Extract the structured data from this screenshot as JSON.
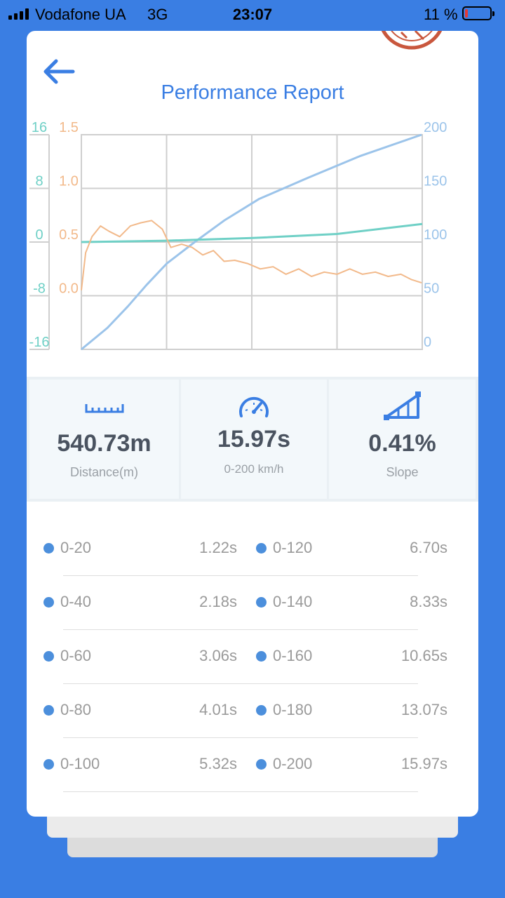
{
  "status_bar": {
    "carrier": "Vodafone UA",
    "network": "3G",
    "time": "23:07",
    "battery_text": "11 %",
    "battery_level": 0.11,
    "battery_color": "#e53935"
  },
  "header": {
    "title": "Performance Report",
    "back_icon": "arrow-left-icon",
    "stamp_icon": "stamp-logo"
  },
  "colors": {
    "accent": "#3a7ee3",
    "speed_line": "#9cc4ea",
    "accel_line": "#f2b98a",
    "slope_line": "#6fd0c6",
    "grid": "#cfcfcf",
    "dot": "#4c8fdc"
  },
  "chart_data": {
    "type": "line",
    "axes": {
      "slope_ticks": [
        "16",
        "8",
        "0",
        "-8",
        "-16"
      ],
      "slope_range": [
        -16,
        16
      ],
      "accel_ticks": [
        "1.5",
        "1.0",
        "0.5",
        "0.0"
      ],
      "accel_range": [
        -0.5,
        1.5
      ],
      "speed_ticks": [
        "200",
        "150",
        "100",
        "50",
        "0"
      ],
      "speed_range": [
        0,
        200
      ]
    },
    "x_range": [
      0,
      16
    ],
    "grid": true,
    "series": [
      {
        "key": "speed",
        "axis": "right",
        "points": [
          [
            0,
            0
          ],
          [
            1.22,
            20
          ],
          [
            2.18,
            40
          ],
          [
            3.06,
            60
          ],
          [
            4.01,
            80
          ],
          [
            5.32,
            100
          ],
          [
            6.7,
            120
          ],
          [
            8.33,
            140
          ],
          [
            10.65,
            160
          ],
          [
            13.07,
            180
          ],
          [
            15.97,
            200
          ]
        ]
      },
      {
        "key": "slope",
        "axis": "left",
        "points": [
          [
            0,
            0
          ],
          [
            4,
            0.2
          ],
          [
            8,
            0.6
          ],
          [
            12,
            1.2
          ],
          [
            16,
            2.7
          ]
        ]
      },
      {
        "key": "acceleration",
        "axis": "left2",
        "points": [
          [
            0,
            0.05
          ],
          [
            0.2,
            0.4
          ],
          [
            0.5,
            0.55
          ],
          [
            0.9,
            0.65
          ],
          [
            1.3,
            0.6
          ],
          [
            1.8,
            0.55
          ],
          [
            2.3,
            0.65
          ],
          [
            2.8,
            0.68
          ],
          [
            3.3,
            0.7
          ],
          [
            3.8,
            0.62
          ],
          [
            4.2,
            0.45
          ],
          [
            4.7,
            0.48
          ],
          [
            5.2,
            0.45
          ],
          [
            5.7,
            0.38
          ],
          [
            6.2,
            0.42
          ],
          [
            6.7,
            0.32
          ],
          [
            7.2,
            0.33
          ],
          [
            7.8,
            0.3
          ],
          [
            8.4,
            0.25
          ],
          [
            9.0,
            0.27
          ],
          [
            9.6,
            0.2
          ],
          [
            10.2,
            0.25
          ],
          [
            10.8,
            0.18
          ],
          [
            11.4,
            0.22
          ],
          [
            12.0,
            0.2
          ],
          [
            12.6,
            0.25
          ],
          [
            13.2,
            0.2
          ],
          [
            13.8,
            0.22
          ],
          [
            14.4,
            0.18
          ],
          [
            15.0,
            0.2
          ],
          [
            15.5,
            0.15
          ],
          [
            15.97,
            0.12
          ]
        ]
      }
    ]
  },
  "stats": [
    {
      "icon": "ruler-icon",
      "value": "540.73m",
      "label": "Distance(m)"
    },
    {
      "icon": "speedometer-icon",
      "value": "15.97s",
      "label": "0-200 km/h"
    },
    {
      "icon": "slope-icon",
      "value": "0.41%",
      "label": "Slope"
    }
  ],
  "splits": [
    {
      "range": "0-20",
      "time": "1.22s"
    },
    {
      "range": "0-120",
      "time": "6.70s"
    },
    {
      "range": "0-40",
      "time": "2.18s"
    },
    {
      "range": "0-140",
      "time": "8.33s"
    },
    {
      "range": "0-60",
      "time": "3.06s"
    },
    {
      "range": "0-160",
      "time": "10.65s"
    },
    {
      "range": "0-80",
      "time": "4.01s"
    },
    {
      "range": "0-180",
      "time": "13.07s"
    },
    {
      "range": "0-100",
      "time": "5.32s"
    },
    {
      "range": "0-200",
      "time": "15.97s"
    }
  ]
}
